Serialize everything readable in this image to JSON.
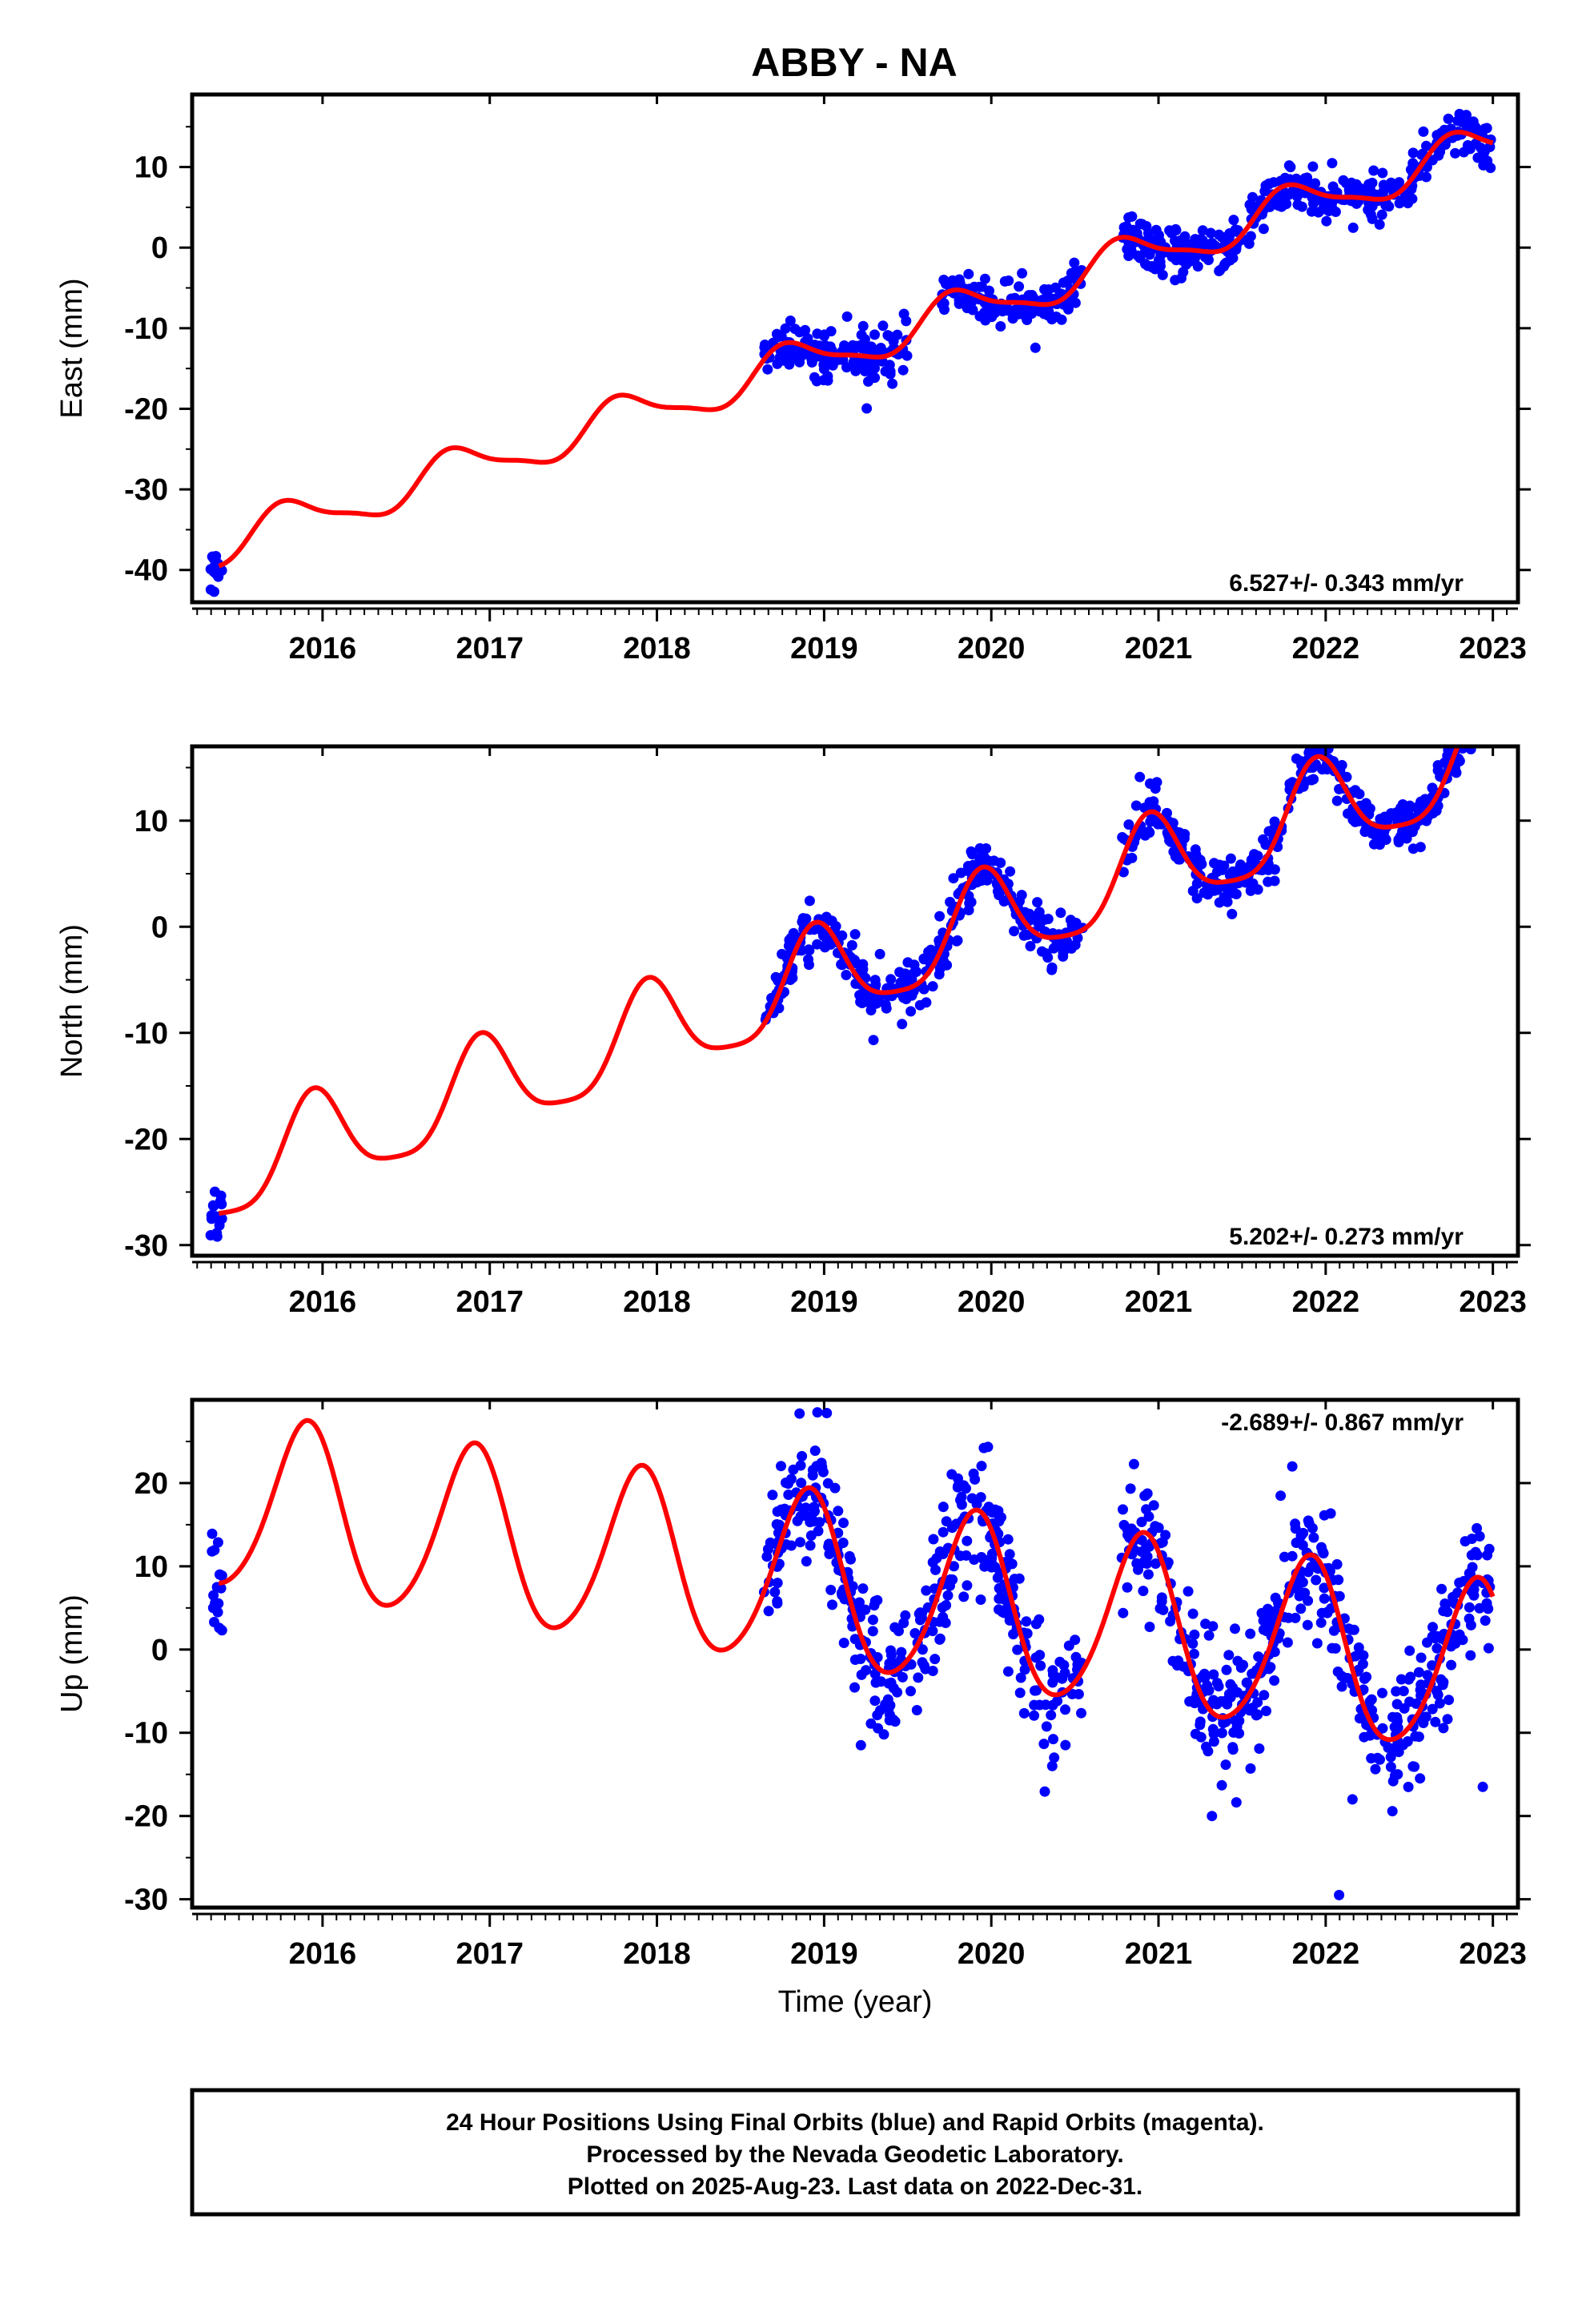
{
  "title": "ABBY - NA",
  "colors": {
    "data_points": "#0000ff",
    "model_fit": "#ff0000",
    "frame": "#000000"
  },
  "footer": {
    "line1": "24 Hour Positions Using Final Orbits (blue) and Rapid Orbits (magenta).",
    "line2": "Processed by the Nevada Geodetic Laboratory.",
    "line3": "Plotted on 2025-Aug-23. Last data on 2022-Dec-31."
  },
  "chart_data": [
    {
      "type": "scatter",
      "ylabel": "East (mm)",
      "xlabel": "",
      "rate_label": "6.527+/- 0.343 mm/yr",
      "rate_position": "bottom-right",
      "xlim": [
        2015.22,
        2023.15
      ],
      "ylim": [
        -44,
        19
      ],
      "xticks": [
        2016,
        2017,
        2018,
        2019,
        2020,
        2021,
        2022,
        2023
      ],
      "yticks": [
        -40,
        -30,
        -20,
        -10,
        0,
        10
      ],
      "grid": false,
      "model": {
        "t0": 2015.38,
        "y0": -39.5,
        "rate": 6.527,
        "a": [
          -2.4,
          0.8,
          0.3,
          -0.6
        ]
      },
      "data_segments": [
        {
          "x": [
            2015.33,
            2015.4
          ],
          "n": 14,
          "scatter": 1.0
        },
        {
          "x": [
            2018.64,
            2019.5
          ],
          "n": 150,
          "scatter": 1.6
        },
        {
          "x": [
            2019.7,
            2020.55
          ],
          "n": 150,
          "scatter": 1.3
        },
        {
          "x": [
            2020.78,
            2021.45
          ],
          "n": 150,
          "scatter": 1.4
        },
        {
          "x": [
            2021.45,
            2022.99
          ],
          "n": 240,
          "scatter": 1.5
        }
      ]
    },
    {
      "type": "scatter",
      "ylabel": "North (mm)",
      "xlabel": "",
      "rate_label": "5.202+/- 0.273 mm/yr",
      "rate_position": "bottom-right",
      "xlim": [
        2015.22,
        2023.15
      ],
      "ylim": [
        -31,
        17
      ],
      "xticks": [
        2016,
        2017,
        2018,
        2019,
        2020,
        2021,
        2022,
        2023
      ],
      "yticks": [
        -30,
        -20,
        -10,
        0,
        10
      ],
      "grid": false,
      "model": {
        "t0": 2015.38,
        "y0": -27.0,
        "rate": 5.202,
        "a": [
          -1.4,
          4.3,
          -0.7,
          0.7
        ]
      },
      "data_segments": [
        {
          "x": [
            2015.33,
            2015.4
          ],
          "n": 14,
          "scatter": 1.2
        },
        {
          "x": [
            2018.64,
            2020.55
          ],
          "n": 330,
          "scatter": 1.2
        },
        {
          "x": [
            2020.78,
            2022.99
          ],
          "n": 380,
          "scatter": 1.2
        }
      ]
    },
    {
      "type": "scatter",
      "ylabel": "Up (mm)",
      "xlabel": "Time (year)",
      "rate_label": "-2.689+/- 0.867 mm/yr",
      "rate_position": "top-right",
      "xlim": [
        2015.22,
        2023.15
      ],
      "ylim": [
        -31,
        30
      ],
      "xticks": [
        2016,
        2017,
        2018,
        2019,
        2020,
        2021,
        2022,
        2023
      ],
      "yticks": [
        -30,
        -20,
        -10,
        0,
        10,
        20
      ],
      "grid": false,
      "model": {
        "t0": 2015.38,
        "y0": 8.0,
        "rate": -2.689,
        "a": [
          -6.0,
          8.5,
          -0.8,
          0.9
        ]
      },
      "data_segments": [
        {
          "x": [
            2015.33,
            2015.4
          ],
          "n": 16,
          "scatter": 3.0
        },
        {
          "x": [
            2018.64,
            2020.55
          ],
          "n": 380,
          "scatter": 3.8
        },
        {
          "x": [
            2020.78,
            2022.99
          ],
          "n": 430,
          "scatter": 3.8
        }
      ],
      "outliers": [
        {
          "x": 2018.96,
          "y": 28.5
        },
        {
          "x": 2019.22,
          "y": -11.5
        },
        {
          "x": 2021.32,
          "y": -20.0
        },
        {
          "x": 2021.8,
          "y": 22.0
        },
        {
          "x": 2022.08,
          "y": -29.5
        },
        {
          "x": 2022.16,
          "y": -18.0
        },
        {
          "x": 2022.94,
          "y": -16.5
        }
      ]
    }
  ]
}
